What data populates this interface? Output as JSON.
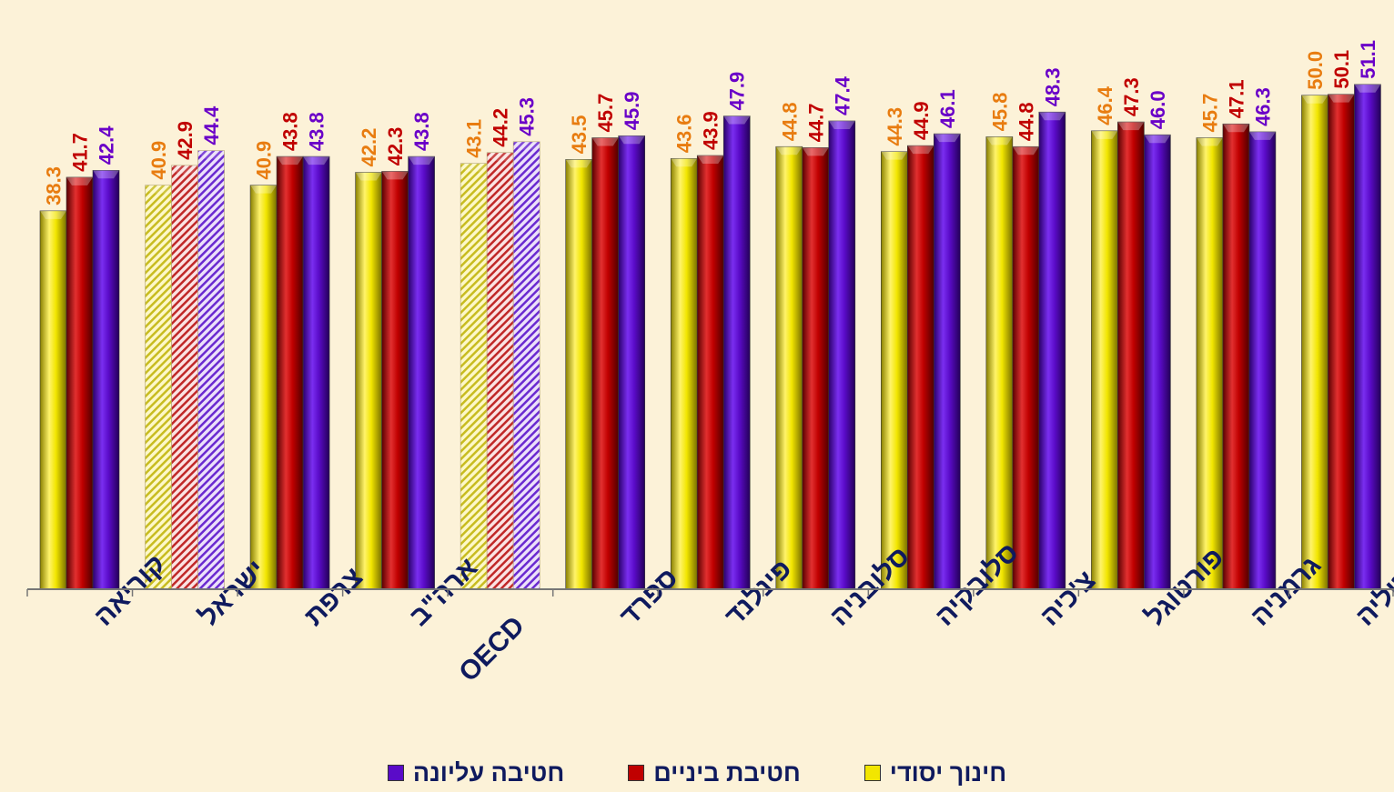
{
  "chart_data": {
    "type": "bar",
    "title": "",
    "xlabel": "",
    "ylabel": "",
    "ylim": [
      0,
      52
    ],
    "grid": false,
    "legend_placement": "bottom",
    "categories": [
      "קוריאה",
      "ישראל",
      "צרפת",
      "ארה\"ב",
      "OECD",
      "ספרד",
      "פינלנד",
      "סלובניה",
      "סלובקיה",
      "צ'כיה",
      "פורטוגל",
      "גרמניה",
      "איטליה"
    ],
    "highlighted_categories": [
      "ישראל",
      "OECD"
    ],
    "series": [
      {
        "name": "חינוך יסודי",
        "color": "#f2e600",
        "label_color": "#e87c10",
        "values": [
          38.3,
          40.9,
          40.9,
          42.2,
          43.1,
          43.5,
          43.6,
          44.8,
          44.3,
          45.8,
          46.4,
          45.7,
          50.0
        ]
      },
      {
        "name": "חטיבת ביניים",
        "color": "#c00000",
        "label_color": "#c00000",
        "values": [
          41.7,
          42.9,
          43.8,
          42.3,
          44.2,
          45.7,
          43.9,
          44.7,
          44.9,
          44.8,
          47.3,
          47.1,
          50.1
        ]
      },
      {
        "name": "חטיבה עליונה",
        "color": "#5a0bc8",
        "label_color": "#6a00c8",
        "values": [
          42.4,
          44.4,
          43.8,
          43.8,
          45.3,
          45.9,
          47.9,
          47.4,
          46.1,
          48.3,
          46.0,
          46.3,
          51.1
        ]
      }
    ]
  },
  "legend": {
    "items": [
      {
        "label": "חינוך יסודי",
        "color": "#f2e600"
      },
      {
        "label": "חטיבת ביניים",
        "color": "#c00000"
      },
      {
        "label": "חטיבה עליונה",
        "color": "#5a0bc8"
      }
    ]
  }
}
